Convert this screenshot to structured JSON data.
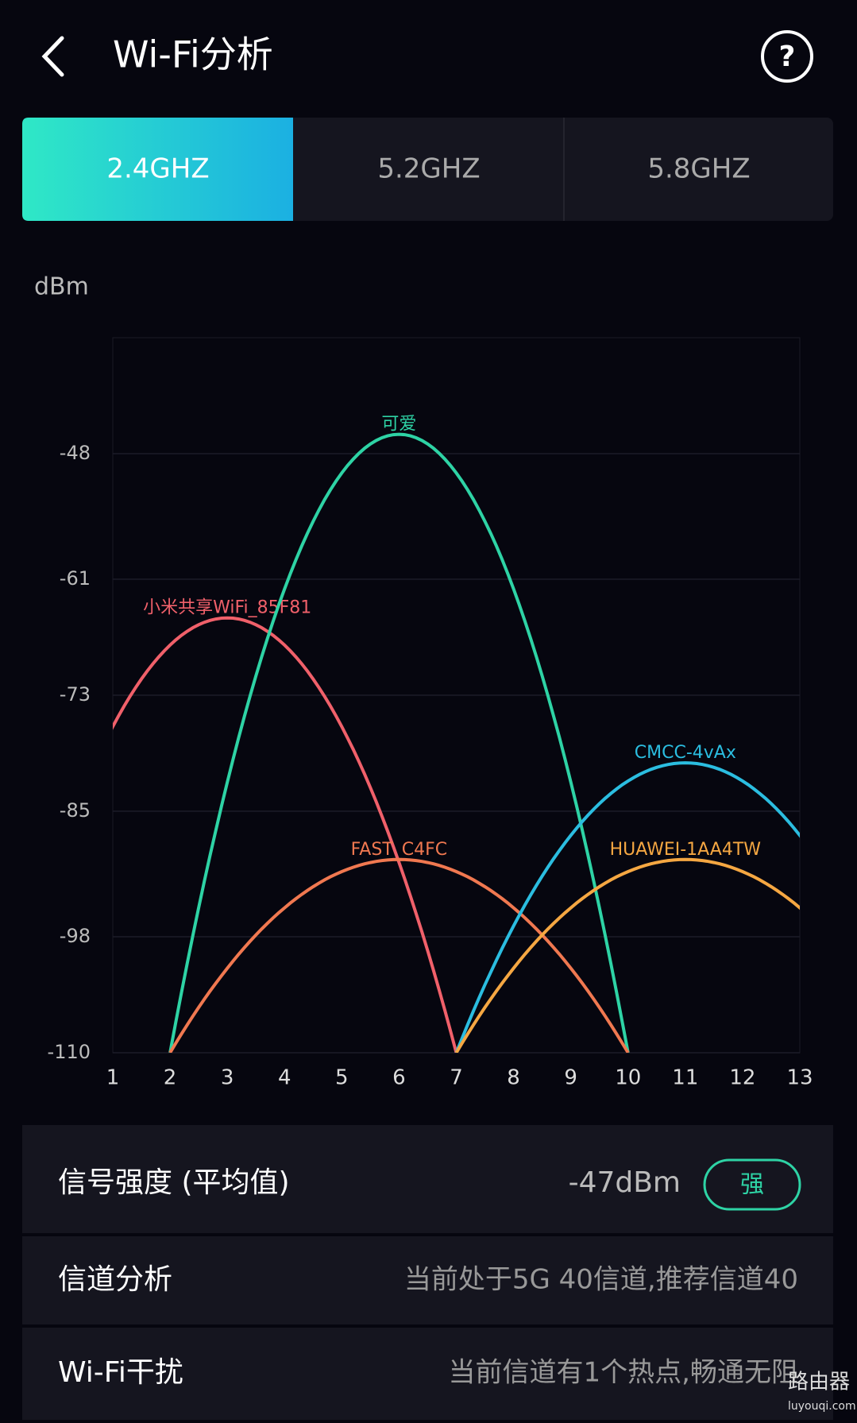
{
  "header": {
    "title": "Wi-Fi分析"
  },
  "tabs": [
    "2.4GHZ",
    "5.2GHZ",
    "5.8GHZ"
  ],
  "chart_data": {
    "type": "channel-arcs",
    "y_label": "dBm",
    "xlim": [
      1,
      13
    ],
    "xticks": [
      1,
      2,
      3,
      4,
      5,
      6,
      7,
      8,
      9,
      10,
      11,
      12,
      13
    ],
    "ylim": [
      -110,
      -36
    ],
    "yticks": [
      -48,
      -61,
      -73,
      -85,
      -98,
      -110
    ],
    "grid": true,
    "series": [
      {
        "name": "小米共享WiFi_85F81",
        "color": "#f0606a",
        "channel": 3,
        "value": -65
      },
      {
        "name": "可爱",
        "color": "#2ed3a5",
        "channel": 6,
        "value": -46
      },
      {
        "name": "FAST_C4FC",
        "color": "#f07850",
        "channel": 6,
        "value": -90
      },
      {
        "name": "CMCC-4vAx",
        "color": "#2bbde0",
        "channel": 11,
        "value": -80
      },
      {
        "name": "HUAWEI-1AA4TW",
        "color": "#f5a742",
        "channel": 11,
        "value": -90
      }
    ]
  },
  "rows": [
    {
      "label": "信号强度 (平均值)",
      "value": "-47dBm",
      "badge": "强"
    },
    {
      "label": "信道分析",
      "value": "当前处于5G 40信道,推荐信道40"
    },
    {
      "label": "Wi-Fi干扰",
      "value": "当前信道有1个热点,畅通无阻"
    }
  ],
  "watermark": {
    "name": "路由器",
    "site": "luyouqi.com"
  }
}
